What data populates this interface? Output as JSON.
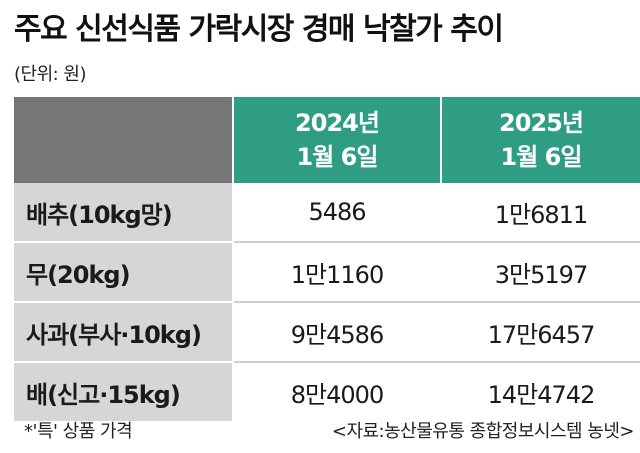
{
  "title": "주요 신선식품 가락시장 경매 낙찰가 추이",
  "unit": "(단위: 원)",
  "table": {
    "header": {
      "col_a": [
        "2024년",
        "1월 6일"
      ],
      "col_b": [
        "2025년",
        "1월 6일"
      ]
    },
    "rows": [
      {
        "item": "배추(10kg망)",
        "a": "5486",
        "b": "1만6811"
      },
      {
        "item": "무(20kg)",
        "a": "1만1160",
        "b": "3만5197"
      },
      {
        "item": "사과(부사·10kg)",
        "a": "9만4586",
        "b": "17만6457"
      },
      {
        "item": "배(신고·15kg)",
        "a": "8만4000",
        "b": "14만4742"
      }
    ]
  },
  "footer": {
    "note": "*'특' 상품 가격",
    "source": "<자료:농산물유통 종합정보시스템 농넷>"
  },
  "colors": {
    "header_accent": "#2f9c84",
    "header_gray": "#767676",
    "item_bg": "#d6d6d6"
  }
}
